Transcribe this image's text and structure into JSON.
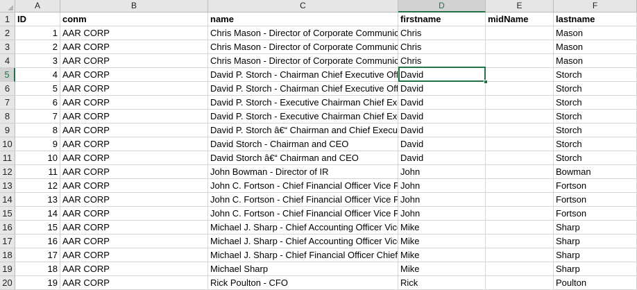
{
  "columns": [
    "A",
    "B",
    "C",
    "D",
    "E",
    "F"
  ],
  "selected_column": "D",
  "selected_row": "5",
  "rows": [
    {
      "n": "1",
      "cells": [
        "ID",
        "conm",
        "name",
        "firstname",
        "midName",
        "lastname"
      ]
    },
    {
      "n": "2",
      "cells": [
        "1",
        "AAR CORP",
        "Chris Mason - Director of Corporate Communications",
        "Chris",
        "",
        "Mason"
      ]
    },
    {
      "n": "3",
      "cells": [
        "2",
        "AAR CORP",
        "Chris Mason - Director of Corporate Communications",
        "Chris",
        "",
        "Mason"
      ]
    },
    {
      "n": "4",
      "cells": [
        "3",
        "AAR CORP",
        "Chris Mason - Director of Corporate Communications",
        "Chris",
        "",
        "Mason"
      ]
    },
    {
      "n": "5",
      "cells": [
        "4",
        "AAR CORP",
        "David P. Storch - Chairman  Chief Executive Officer",
        "David",
        "",
        "Storch"
      ]
    },
    {
      "n": "6",
      "cells": [
        "5",
        "AAR CORP",
        "David P. Storch - Chairman  Chief Executive Officer",
        "David",
        "",
        "Storch"
      ]
    },
    {
      "n": "7",
      "cells": [
        "6",
        "AAR CORP",
        "David P. Storch - Executive Chairman  Chief Executive",
        "David",
        "",
        "Storch"
      ]
    },
    {
      "n": "8",
      "cells": [
        "7",
        "AAR CORP",
        "David P. Storch - Executive Chairman  Chief Executive",
        "David",
        "",
        "Storch"
      ]
    },
    {
      "n": "9",
      "cells": [
        "8",
        "AAR CORP",
        "David P. Storch â€“ Chairman and Chief Executive Officer",
        "David",
        "",
        "Storch"
      ]
    },
    {
      "n": "10",
      "cells": [
        "9",
        "AAR CORP",
        "David Storch - Chairman and CEO",
        "David",
        "",
        "Storch"
      ]
    },
    {
      "n": "11",
      "cells": [
        "10",
        "AAR CORP",
        "David Storch â€“ Chairman and CEO",
        "David",
        "",
        "Storch"
      ]
    },
    {
      "n": "12",
      "cells": [
        "11",
        "AAR CORP",
        "John Bowman - Director of IR",
        "John",
        "",
        "Bowman"
      ]
    },
    {
      "n": "13",
      "cells": [
        "12",
        "AAR CORP",
        "John C. Fortson - Chief Financial Officer  Vice President",
        "John",
        "",
        "Fortson"
      ]
    },
    {
      "n": "14",
      "cells": [
        "13",
        "AAR CORP",
        "John C. Fortson - Chief Financial Officer  Vice President",
        "John",
        "",
        "Fortson"
      ]
    },
    {
      "n": "15",
      "cells": [
        "14",
        "AAR CORP",
        "John C. Fortson - Chief Financial Officer  Vice President",
        "John",
        "",
        "Fortson"
      ]
    },
    {
      "n": "16",
      "cells": [
        "15",
        "AAR CORP",
        "Michael J. Sharp - Chief Accounting Officer  Vice",
        "Mike",
        "",
        "Sharp"
      ]
    },
    {
      "n": "17",
      "cells": [
        "16",
        "AAR CORP",
        "Michael J. Sharp - Chief Accounting Officer  Vice",
        "Mike",
        "",
        "Sharp"
      ]
    },
    {
      "n": "18",
      "cells": [
        "17",
        "AAR CORP",
        "Michael J. Sharp - Chief Financial Officer  Chief",
        "Mike",
        "",
        "Sharp"
      ]
    },
    {
      "n": "19",
      "cells": [
        "18",
        "AAR CORP",
        "Michael Sharp",
        "Mike",
        "",
        "Sharp"
      ]
    },
    {
      "n": "20",
      "cells": [
        "19",
        "AAR CORP",
        "Rick Poulton - CFO",
        "Rick",
        "",
        "Poulton"
      ]
    }
  ]
}
